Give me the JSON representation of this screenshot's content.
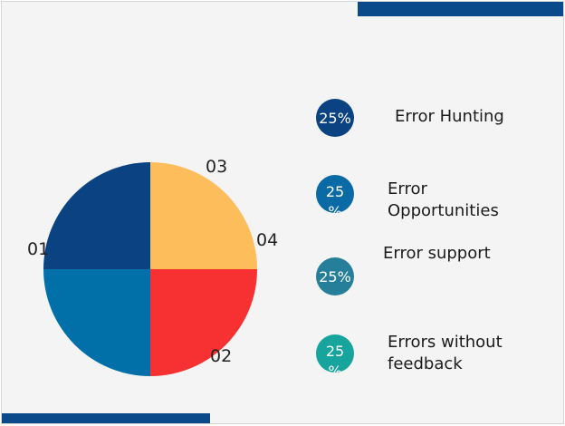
{
  "chart_data": {
    "type": "pie",
    "categories": [
      "Error Hunting",
      "Error Opportunities",
      "Error support",
      "Errors without feedback"
    ],
    "values": [
      25,
      25,
      25,
      25
    ],
    "slice_labels": [
      "01",
      "02",
      "03",
      "04"
    ],
    "colors": [
      "#0a4282",
      "#fdbd5a",
      "#f73131",
      "#0170a8"
    ],
    "title": "",
    "legend_position": "right"
  },
  "legend": [
    {
      "value": "25%",
      "label": "Error Hunting",
      "color": "#0a4282"
    },
    {
      "value": "25 %",
      "label": "Error Opportunities",
      "color": "#0a6aa6"
    },
    {
      "value": "25%",
      "label": "Error support",
      "color": "#267f9a"
    },
    {
      "value": "25 %",
      "label": "Errors without feedback",
      "color": "#16a49d"
    }
  ]
}
